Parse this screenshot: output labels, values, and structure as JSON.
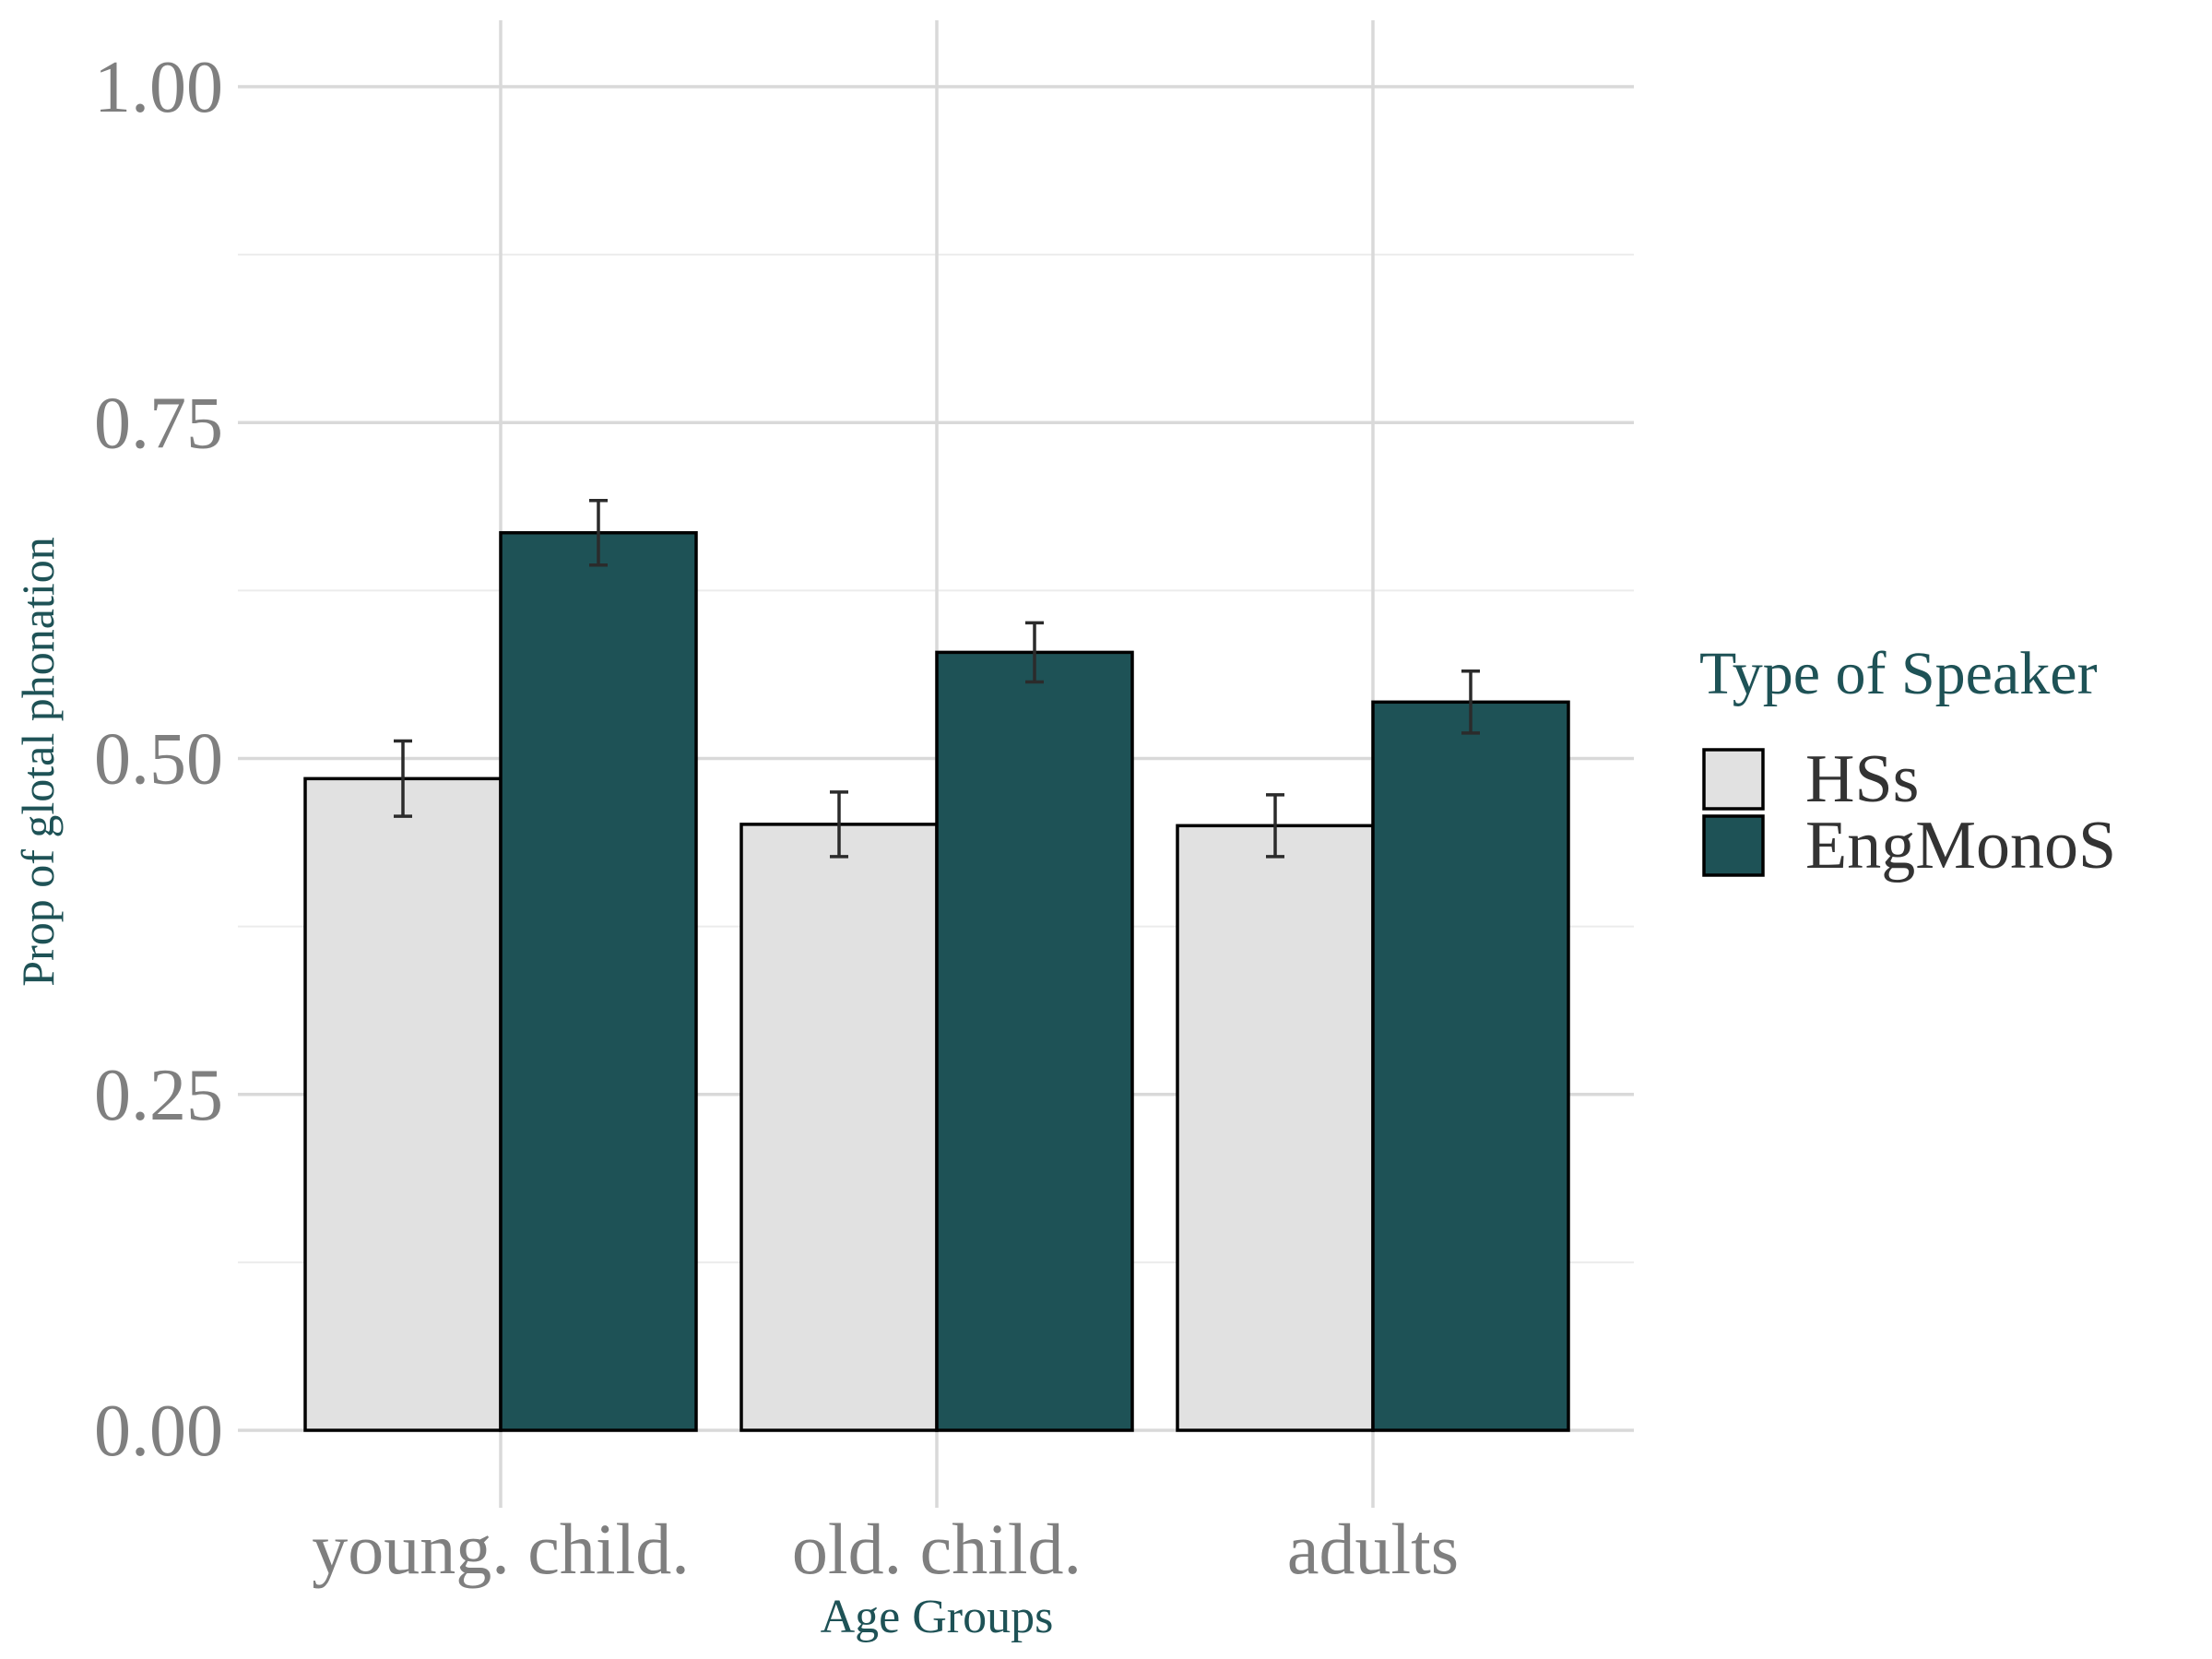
{
  "chart_data": {
    "type": "bar",
    "categories": [
      "young. child.",
      "old. child.",
      "adults"
    ],
    "series": [
      {
        "name": "HSs",
        "values": [
          0.485,
          0.451,
          0.45
        ],
        "error": [
          [
            0.457,
            0.513
          ],
          [
            0.427,
            0.475
          ],
          [
            0.427,
            0.473
          ]
        ],
        "color": "#e1e1e1"
      },
      {
        "name": "EngMonoS",
        "values": [
          0.668,
          0.579,
          0.542
        ],
        "error": [
          [
            0.644,
            0.692
          ],
          [
            0.557,
            0.601
          ],
          [
            0.519,
            0.565
          ]
        ],
        "color": "#1e5256"
      }
    ],
    "xlabel": "Age Groups",
    "ylabel": "Prop of glotal phonation",
    "ylim": [
      0,
      1.0
    ],
    "yticks": [
      "0.00",
      "0.25",
      "0.50",
      "0.75",
      "1.00"
    ],
    "ytick_values": [
      0,
      0.25,
      0.5,
      0.75,
      1.0
    ],
    "grid": true,
    "legend": {
      "title": "Type of Speaker",
      "position": "right"
    },
    "colors": {
      "axis_title": "#1e5256",
      "tick_label": "#7f7f7f",
      "grid": "#d9d9d9",
      "outline": "#000000"
    }
  }
}
